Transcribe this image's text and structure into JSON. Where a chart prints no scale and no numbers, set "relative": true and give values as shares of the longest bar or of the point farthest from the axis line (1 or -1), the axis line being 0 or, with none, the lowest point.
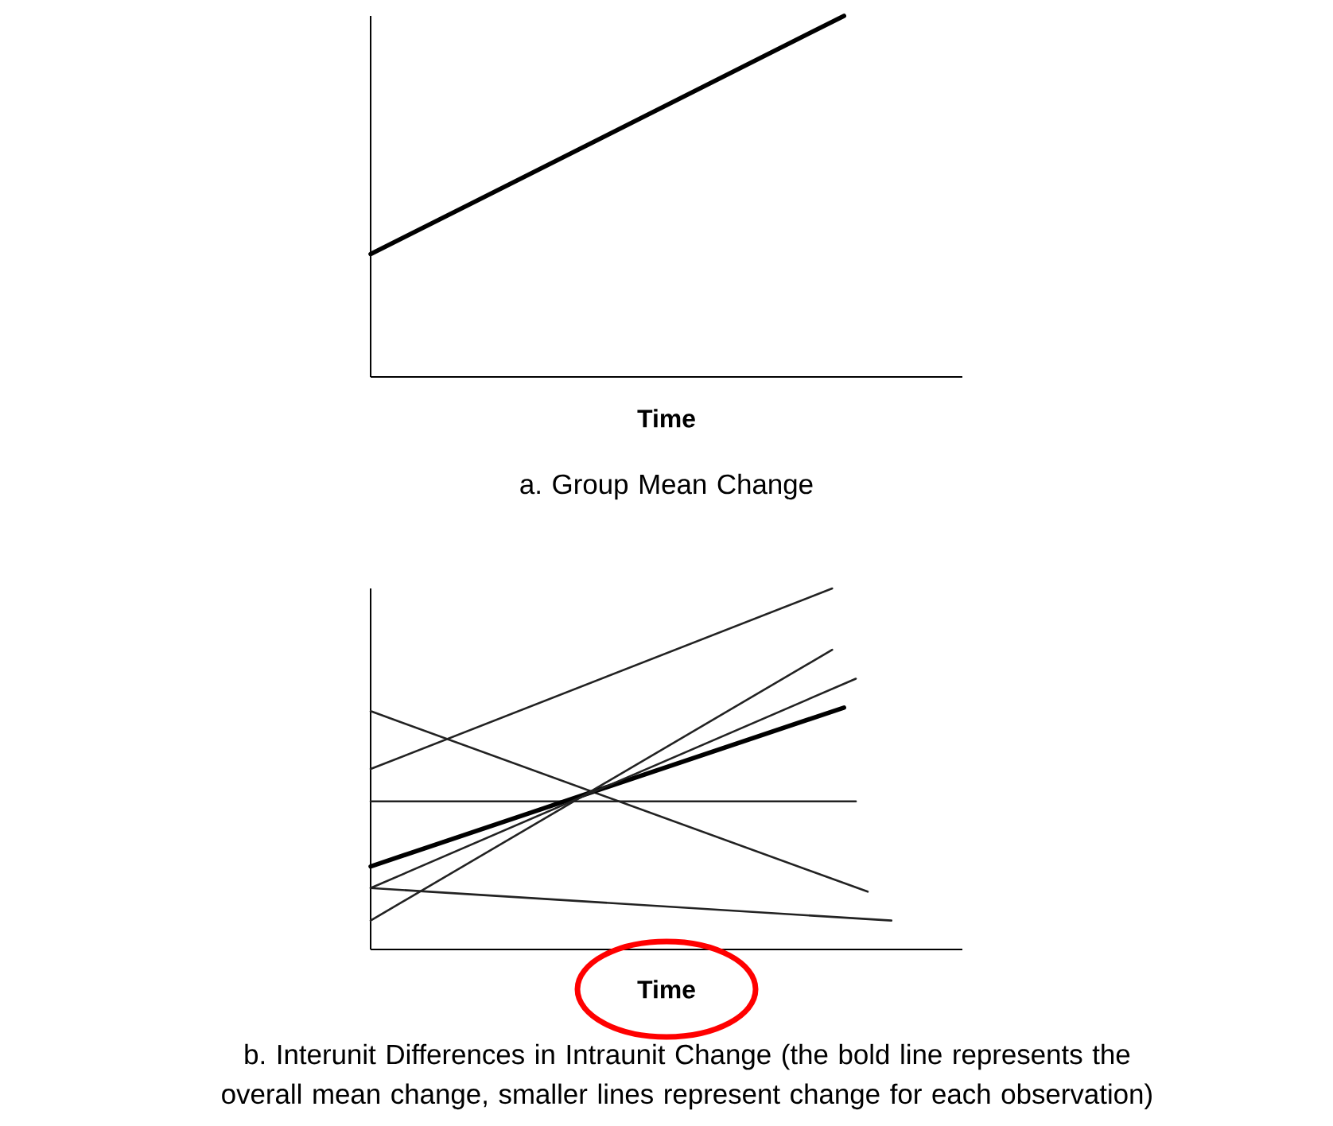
{
  "chart_data": [
    {
      "type": "line",
      "relative": true,
      "xlabel": "Time",
      "title": "a. Group Mean Change",
      "categories": [
        null,
        null,
        null,
        null,
        null,
        null,
        null,
        null,
        null,
        null,
        null,
        null,
        null,
        null,
        null,
        null,
        null,
        null,
        null,
        null,
        null,
        null,
        null,
        null,
        null,
        null,
        null,
        null,
        null,
        null,
        null,
        null,
        null,
        null,
        null,
        null,
        null,
        null,
        null,
        null,
        null,
        null,
        null,
        null,
        null,
        null,
        null,
        null,
        null,
        null,
        null
      ],
      "series": [
        {
          "color": "#000000",
          "values": [
            0.34,
            null,
            null,
            null,
            null,
            null,
            null,
            null,
            null,
            null,
            null,
            null,
            null,
            null,
            null,
            null,
            null,
            null,
            null,
            null,
            null,
            null,
            null,
            null,
            null,
            null,
            null,
            null,
            null,
            null,
            null,
            null,
            null,
            null,
            null,
            null,
            null,
            null,
            null,
            null,
            1,
            null,
            null,
            null,
            null,
            null,
            null,
            null,
            null,
            null,
            null
          ]
        }
      ]
    },
    {
      "type": "line",
      "relative": true,
      "xlabel": "Time",
      "title": "b. Interunit Differences in Intraunit Change (the bold line represents the overall mean change, smaller lines represent change for each observation)",
      "categories": [
        null,
        null,
        null,
        null,
        null,
        null,
        null,
        null,
        null,
        null,
        null,
        null,
        null,
        null,
        null,
        null,
        null,
        null,
        null,
        null,
        null,
        null,
        null,
        null,
        null,
        null,
        null,
        null,
        null,
        null,
        null,
        null,
        null,
        null,
        null,
        null,
        null,
        null,
        null,
        null,
        null,
        null,
        null,
        null,
        null,
        null,
        null,
        null,
        null,
        null,
        null
      ],
      "series": [
        {
          "color": "#222222",
          "values": [
            0.5,
            null,
            null,
            null,
            null,
            null,
            null,
            null,
            null,
            null,
            null,
            null,
            null,
            null,
            null,
            null,
            null,
            null,
            null,
            null,
            null,
            null,
            null,
            null,
            null,
            null,
            null,
            null,
            null,
            null,
            null,
            null,
            null,
            null,
            null,
            null,
            null,
            null,
            null,
            1,
            null,
            null,
            null,
            null,
            null,
            null,
            null,
            null,
            null,
            null,
            null
          ]
        },
        {
          "color": "#222222",
          "values": [
            0.66,
            null,
            null,
            null,
            null,
            null,
            null,
            null,
            null,
            null,
            null,
            null,
            null,
            null,
            null,
            null,
            null,
            null,
            null,
            null,
            null,
            null,
            null,
            null,
            null,
            null,
            null,
            null,
            null,
            null,
            null,
            null,
            null,
            null,
            null,
            null,
            null,
            null,
            null,
            null,
            null,
            null,
            0.16,
            null,
            null,
            null,
            null,
            null,
            null,
            null,
            null
          ]
        },
        {
          "color": "#222222",
          "values": [
            0.41,
            null,
            null,
            null,
            null,
            null,
            null,
            null,
            null,
            null,
            null,
            null,
            null,
            null,
            null,
            null,
            null,
            null,
            null,
            null,
            null,
            null,
            null,
            null,
            null,
            null,
            null,
            null,
            null,
            null,
            null,
            null,
            null,
            null,
            null,
            null,
            null,
            null,
            null,
            null,
            null,
            0.41,
            null,
            null,
            null,
            null,
            null,
            null,
            null,
            null,
            null
          ]
        },
        {
          "color": "#000000",
          "values": [
            0.23,
            null,
            null,
            null,
            null,
            null,
            null,
            null,
            null,
            null,
            null,
            null,
            null,
            null,
            null,
            null,
            null,
            null,
            null,
            null,
            null,
            null,
            null,
            null,
            null,
            null,
            null,
            null,
            null,
            null,
            null,
            null,
            null,
            null,
            null,
            null,
            null,
            null,
            null,
            null,
            0.67,
            null,
            null,
            null,
            null,
            null,
            null,
            null,
            null,
            null,
            null
          ]
        },
        {
          "color": "#222222",
          "values": [
            0.17,
            null,
            null,
            null,
            null,
            null,
            null,
            null,
            null,
            null,
            null,
            null,
            null,
            null,
            null,
            null,
            null,
            null,
            null,
            null,
            null,
            null,
            null,
            null,
            null,
            null,
            null,
            null,
            null,
            null,
            null,
            null,
            null,
            null,
            null,
            null,
            null,
            null,
            null,
            null,
            null,
            null,
            null,
            null,
            0.08,
            null,
            null,
            null,
            null,
            null,
            null
          ]
        },
        {
          "color": "#222222",
          "values": [
            0.08,
            null,
            null,
            null,
            null,
            null,
            null,
            null,
            null,
            null,
            null,
            null,
            null,
            null,
            null,
            null,
            null,
            null,
            null,
            null,
            null,
            null,
            null,
            null,
            null,
            null,
            null,
            null,
            null,
            null,
            null,
            null,
            null,
            null,
            null,
            null,
            null,
            null,
            null,
            0.83,
            null,
            null,
            null,
            null,
            null,
            null,
            null,
            null,
            null,
            null,
            null
          ]
        },
        {
          "color": "#222222",
          "values": [
            0.17,
            null,
            null,
            null,
            null,
            null,
            null,
            null,
            null,
            null,
            null,
            null,
            null,
            null,
            null,
            null,
            null,
            null,
            null,
            null,
            null,
            null,
            null,
            null,
            null,
            null,
            null,
            null,
            null,
            null,
            null,
            null,
            null,
            null,
            null,
            null,
            null,
            null,
            null,
            null,
            null,
            0.75,
            null,
            null,
            null,
            null,
            null,
            null,
            null,
            null,
            null
          ]
        }
      ]
    }
  ]
}
